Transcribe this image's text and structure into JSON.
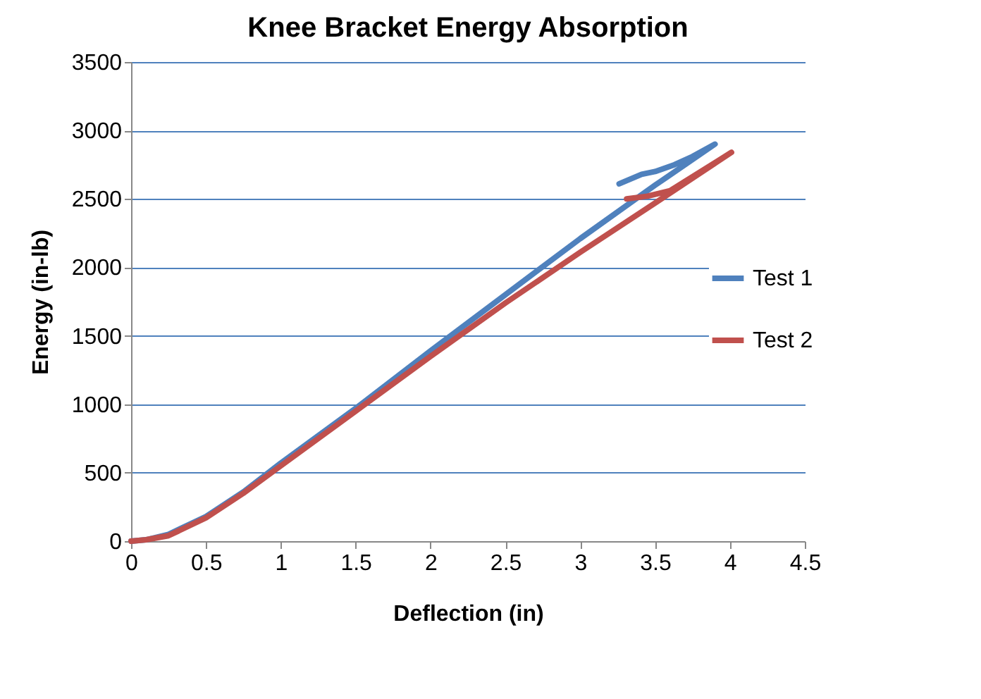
{
  "chart_data": {
    "type": "line",
    "title": "Knee Bracket Energy Absorption",
    "xlabel": "Deflection (in)",
    "ylabel": "Energy (in-lb)",
    "xlim": [
      0,
      4.5
    ],
    "xticks": [
      0,
      0.5,
      1,
      1.5,
      2,
      2.5,
      3,
      3.5,
      4,
      4.5
    ],
    "ylim": [
      0,
      3500
    ],
    "yticks": [
      0,
      500,
      1000,
      1500,
      2000,
      2500,
      3000,
      3500
    ],
    "grid": "y",
    "legend": "right",
    "marker": "none",
    "line_style": "solid",
    "series": [
      {
        "name": "Test 1",
        "color": "#4f81bd",
        "x": [
          0,
          0.1,
          0.25,
          0.5,
          0.75,
          1,
          1.5,
          2,
          2.5,
          3,
          3.5,
          3.9,
          3.75,
          3.63,
          3.5,
          3.41,
          3.26
        ],
        "values": [
          0,
          10,
          50,
          180,
          360,
          570,
          970,
          1390,
          1800,
          2210,
          2600,
          2900,
          2810,
          2750,
          2700,
          2680,
          2610
        ]
      },
      {
        "name": "Test 2",
        "color": "#c0504d",
        "x": [
          0,
          0.1,
          0.25,
          0.5,
          0.75,
          1,
          1.5,
          2,
          2.5,
          3,
          3.5,
          4.01,
          3.6,
          3.45,
          3.31
        ],
        "values": [
          0,
          10,
          40,
          170,
          350,
          550,
          950,
          1350,
          1740,
          2110,
          2470,
          2840,
          2560,
          2520,
          2500
        ]
      }
    ]
  }
}
